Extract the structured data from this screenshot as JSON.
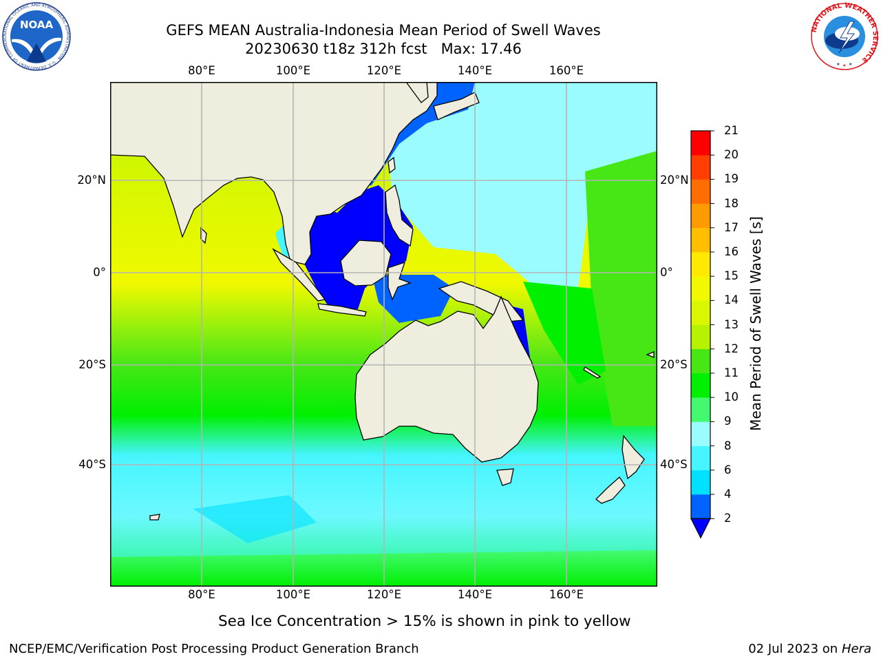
{
  "header": {
    "title_line1": "GEFS MEAN Australia-Indonesia Mean Period of Swell Waves",
    "title_line2": "20230630 t18z 312h fcst   Max: 17.46"
  },
  "logos": {
    "noara": {
      "text": "NOAA",
      "ring_text": "NATIONAL OCEANIC AND ATMOSPHERIC ADMINISTRATION · U.S. DEPARTMENT OF COMMERCE"
    },
    "nws": {
      "ring_text": "NATIONAL WEATHER SERVICE"
    }
  },
  "map": {
    "lon_labels": [
      "80°E",
      "100°E",
      "120°E",
      "140°E",
      "160°E"
    ],
    "lat_labels_left": [
      "20°N",
      "0°",
      "20°S",
      "40°S"
    ],
    "lat_labels_right": [
      "20°N",
      "0°",
      "20°S",
      "40°S"
    ],
    "colors": {
      "land": "#efedde",
      "coast": "#000000",
      "grid": "#b4b4b4"
    }
  },
  "colorbar": {
    "title": "Mean Period of Swell Waves [s]",
    "ticks": [
      "2",
      "4",
      "6",
      "8",
      "9",
      "10",
      "11",
      "12",
      "13",
      "14",
      "15",
      "16",
      "17",
      "18",
      "19",
      "20",
      "21"
    ],
    "colors": [
      "#0063ff",
      "#00e1ff",
      "#45f5ff",
      "#9bfcff",
      "#42f96f",
      "#00f000",
      "#47e716",
      "#b7f200",
      "#d9f800",
      "#f0f900",
      "#ffe900",
      "#ffbf00",
      "#ff9a00",
      "#ff6d00",
      "#ff3e00",
      "#ff0000"
    ],
    "under_color": "#0000ff"
  },
  "notes": {
    "sea_ice": "Sea Ice Concentration > 15% is shown in pink to yellow"
  },
  "footer": {
    "left": "NCEP/EMC/Verification Post Processing Product Generation Branch",
    "date": "02 Jul 2023 on ",
    "host": "Hera"
  }
}
